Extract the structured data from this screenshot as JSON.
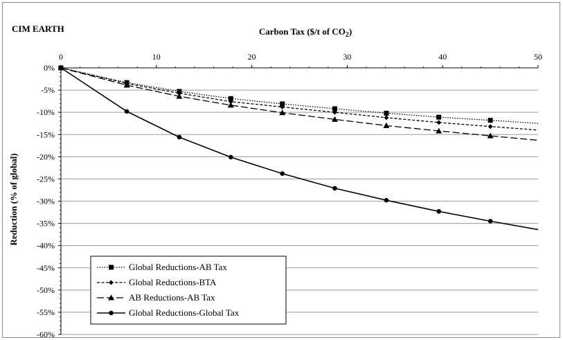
{
  "chart_data": {
    "type": "line",
    "corner_label": "CIM EARTH",
    "title": "Carbon Tax ($/t of CO",
    "title_subscript": "2",
    "title_suffix": ")",
    "xlabel": "Carbon Tax ($/t of CO2)",
    "ylabel": "Reduction (% of global)",
    "x_axis_position": "top",
    "xlim": [
      0,
      50
    ],
    "ylim": [
      -60,
      0
    ],
    "x_ticks": [
      0,
      10,
      20,
      30,
      40,
      50
    ],
    "y_ticks": [
      0,
      -5,
      -10,
      -15,
      -20,
      -25,
      -30,
      -35,
      -40,
      -45,
      -50,
      -55,
      -60
    ],
    "y_tick_labels": [
      "0%",
      "-5%",
      "-10%",
      "-15%",
      "-20%",
      "-25%",
      "-30%",
      "-35%",
      "-40%",
      "-45%",
      "-50%",
      "-55%",
      "-60%"
    ],
    "gridlines": "horizontal",
    "legend_position": "bottom-left",
    "series": [
      {
        "name": "Global Reductions-AB Tax",
        "dash": "dotted",
        "marker": "square",
        "x": [
          0,
          6.9,
          12.4,
          17.8,
          23.2,
          28.7,
          34.1,
          39.6,
          45.0,
          50
        ],
        "y": [
          0,
          -3.3,
          -5.3,
          -6.9,
          -8.1,
          -9.2,
          -10.2,
          -11.1,
          -11.8,
          -12.5
        ]
      },
      {
        "name": "Global Reductions-BTA",
        "dash": "short-dash",
        "marker": "diamond",
        "x": [
          0,
          6.9,
          12.4,
          17.8,
          23.2,
          28.7,
          34.1,
          39.6,
          45.0,
          50
        ],
        "y": [
          0,
          -3.5,
          -5.7,
          -7.6,
          -8.8,
          -10.0,
          -11.2,
          -12.3,
          -13.2,
          -14.0
        ]
      },
      {
        "name": "AB Reductions-AB Tax",
        "dash": "long-dash",
        "marker": "triangle",
        "x": [
          0,
          6.9,
          12.4,
          17.8,
          23.2,
          28.7,
          34.1,
          39.6,
          45.0,
          50
        ],
        "y": [
          0,
          -3.9,
          -6.4,
          -8.4,
          -10.1,
          -11.6,
          -13.0,
          -14.2,
          -15.3,
          -16.3
        ]
      },
      {
        "name": "Global Reductions-Global Tax",
        "dash": "solid",
        "marker": "circle",
        "x": [
          0,
          6.9,
          12.4,
          17.8,
          23.2,
          28.7,
          34.1,
          39.6,
          45.0,
          50
        ],
        "y": [
          0,
          -9.8,
          -15.6,
          -20.1,
          -23.8,
          -27.1,
          -29.8,
          -32.3,
          -34.5,
          -36.4
        ]
      }
    ]
  }
}
